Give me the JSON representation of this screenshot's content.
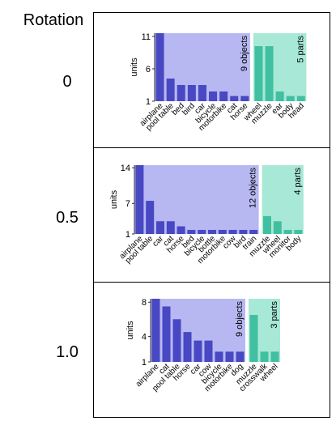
{
  "header_label": "Rotation",
  "rows": [
    {
      "rotation": "0",
      "ylabel": "units",
      "yticks": [
        1,
        6,
        11
      ],
      "ylim": [
        1,
        11.5
      ],
      "object_label": "9 objects",
      "part_label": "5 parts",
      "objects": [
        {
          "label": "airplane",
          "value": 11.5
        },
        {
          "label": "pool table",
          "value": 4.5
        },
        {
          "label": "bed",
          "value": 3.5
        },
        {
          "label": "bird",
          "value": 3.5
        },
        {
          "label": "car",
          "value": 3.5
        },
        {
          "label": "bicycle",
          "value": 2.5
        },
        {
          "label": "motorbike",
          "value": 2.5
        },
        {
          "label": "cat",
          "value": 1.8
        },
        {
          "label": "horse",
          "value": 1.8
        }
      ],
      "parts": [
        {
          "label": "wheel",
          "value": 9.5
        },
        {
          "label": "muzzle",
          "value": 9.5
        },
        {
          "label": "ear",
          "value": 2.5
        },
        {
          "label": "body",
          "value": 1.8
        },
        {
          "label": "head",
          "value": 1.8
        }
      ]
    },
    {
      "rotation": "0.5",
      "ylabel": "units",
      "yticks": [
        1,
        7,
        14
      ],
      "ylim": [
        1,
        14.5
      ],
      "object_label": "12 objects",
      "part_label": "4 parts",
      "objects": [
        {
          "label": "airplane",
          "value": 14.5
        },
        {
          "label": "pool table",
          "value": 7.5
        },
        {
          "label": "car",
          "value": 3.5
        },
        {
          "label": "cat",
          "value": 3.5
        },
        {
          "label": "horse",
          "value": 2.5
        },
        {
          "label": "bed",
          "value": 1.8
        },
        {
          "label": "bicycle",
          "value": 1.8
        },
        {
          "label": "bottle",
          "value": 1.8
        },
        {
          "label": "motorbike",
          "value": 1.8
        },
        {
          "label": "cow",
          "value": 1.8
        },
        {
          "label": "bird",
          "value": 1.8
        },
        {
          "label": "train",
          "value": 1.8
        }
      ],
      "parts": [
        {
          "label": "muzzle",
          "value": 4.5
        },
        {
          "label": "wheel",
          "value": 3.5
        },
        {
          "label": "monitor",
          "value": 1.8
        },
        {
          "label": "body",
          "value": 1.8
        }
      ]
    },
    {
      "rotation": "1.0",
      "ylabel": "units",
      "yticks": [
        1,
        4,
        8
      ],
      "ylim": [
        1,
        8.4
      ],
      "object_label": "9 objects",
      "part_label": "3 parts",
      "objects": [
        {
          "label": "airplane",
          "value": 8.4
        },
        {
          "label": "cat",
          "value": 7.5
        },
        {
          "label": "pool table",
          "value": 6.0
        },
        {
          "label": "horse",
          "value": 4.5
        },
        {
          "label": "car",
          "value": 3.5
        },
        {
          "label": "cow",
          "value": 3.5
        },
        {
          "label": "bicycle",
          "value": 2.2
        },
        {
          "label": "motorbike",
          "value": 2.2
        },
        {
          "label": "dog",
          "value": 2.2
        }
      ],
      "parts": [
        {
          "label": "muzzle",
          "value": 6.5
        },
        {
          "label": "crosswalk",
          "value": 2.2
        },
        {
          "label": "wheel",
          "value": 2.2
        }
      ]
    }
  ],
  "colors": {
    "object_bg": "#b7b8f1",
    "object_bar": "#4848c4",
    "part_bg": "#a8e8d6",
    "part_bar": "#40c0a0"
  }
}
